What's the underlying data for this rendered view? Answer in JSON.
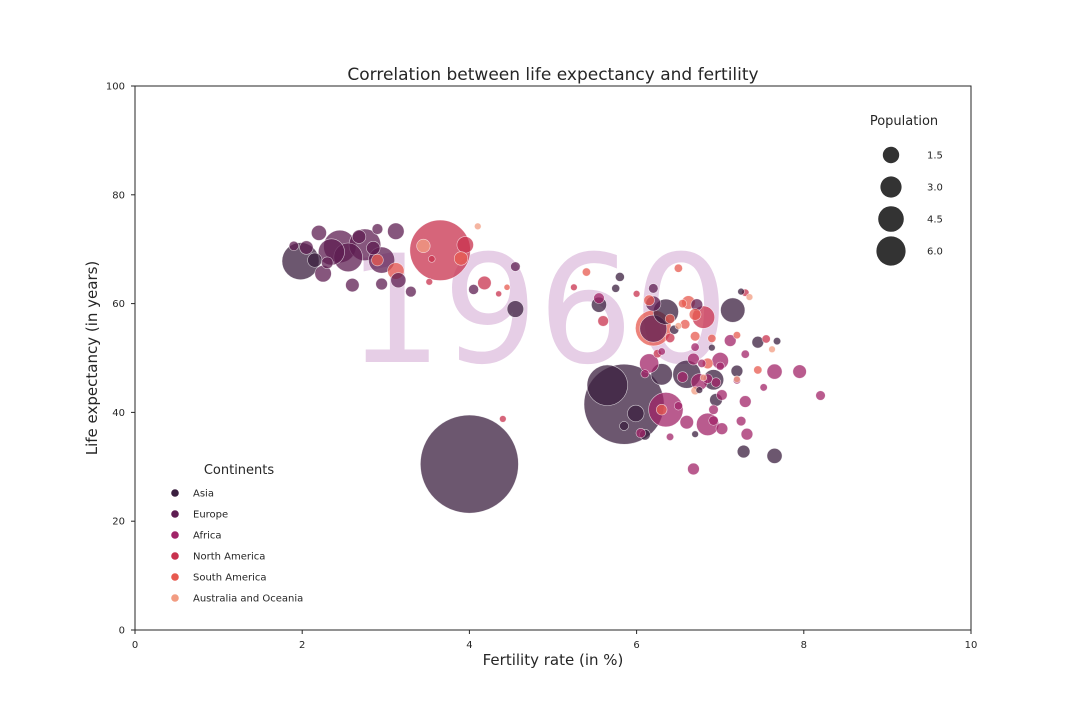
{
  "chart_data": {
    "type": "scatter",
    "title": "Correlation between life expectancy and fertility",
    "xlabel": "Fertility rate (in %)",
    "ylabel": "Life expectancy (in years)",
    "xlim": [
      0,
      10
    ],
    "ylim": [
      0,
      100
    ],
    "xticks": [
      "0",
      "2",
      "4",
      "6",
      "8",
      "10"
    ],
    "yticks": [
      "0",
      "20",
      "40",
      "60",
      "80",
      "100"
    ],
    "year": "1960",
    "grid": false,
    "hue_legend": {
      "title": "Continents",
      "placement": "lower-left",
      "entries": [
        {
          "name": "Asia",
          "color": "#3b1f3f"
        },
        {
          "name": "Europe",
          "color": "#5e1d52"
        },
        {
          "name": "Africa",
          "color": "#a12468"
        },
        {
          "name": "North America",
          "color": "#c8324e"
        },
        {
          "name": "South America",
          "color": "#e7594f"
        },
        {
          "name": "Australia and Oceania",
          "color": "#f29c82"
        }
      ]
    },
    "size_legend": {
      "title": "Population",
      "placement": "top-right",
      "entries": [
        {
          "label": "1.5",
          "value": 1.5
        },
        {
          "label": "3.0",
          "value": 3.0
        },
        {
          "label": "4.5",
          "value": 4.5
        },
        {
          "label": "6.0",
          "value": 6.0
        }
      ]
    },
    "series": [
      {
        "name": "Asia",
        "color": "#3b1f3f",
        "points": [
          [
            4.0,
            30.5,
            2100
          ],
          [
            5.85,
            41.5,
            1400
          ],
          [
            5.65,
            45.0,
            360
          ],
          [
            1.98,
            67.8,
            300
          ],
          [
            6.35,
            58.5,
            140
          ],
          [
            6.6,
            47.0,
            170
          ],
          [
            7.15,
            58.8,
            130
          ],
          [
            6.3,
            47.0,
            100
          ],
          [
            6.92,
            46.0,
            90
          ],
          [
            5.99,
            39.8,
            60
          ],
          [
            7.65,
            32.0,
            50
          ],
          [
            5.55,
            59.8,
            50
          ],
          [
            2.15,
            68.0,
            45
          ],
          [
            7.28,
            32.8,
            35
          ],
          [
            6.95,
            42.3,
            35
          ],
          [
            7.45,
            52.9,
            30
          ],
          [
            4.55,
            59.0,
            60
          ],
          [
            6.1,
            35.9,
            25
          ],
          [
            7.2,
            47.6,
            30
          ],
          [
            6.45,
            55.2,
            18
          ],
          [
            5.8,
            64.9,
            18
          ],
          [
            5.75,
            62.8,
            14
          ],
          [
            6.9,
            51.9,
            10
          ],
          [
            7.25,
            62.2,
            10
          ],
          [
            7.68,
            53.1,
            12
          ],
          [
            6.7,
            36.0,
            10
          ],
          [
            6.75,
            44.1,
            10
          ],
          [
            5.85,
            37.5,
            18
          ]
        ]
      },
      {
        "name": "Europe",
        "color": "#5e1d52",
        "points": [
          [
            2.45,
            70.5,
            230
          ],
          [
            2.75,
            70.8,
            220
          ],
          [
            2.55,
            68.5,
            180
          ],
          [
            2.35,
            69.5,
            150
          ],
          [
            2.95,
            68.0,
            150
          ],
          [
            3.12,
            73.3,
            60
          ],
          [
            2.2,
            73.0,
            50
          ],
          [
            2.68,
            72.3,
            40
          ],
          [
            2.85,
            70.2,
            40
          ],
          [
            3.15,
            64.3,
            50
          ],
          [
            2.6,
            63.4,
            40
          ],
          [
            2.25,
            65.5,
            60
          ],
          [
            2.05,
            70.3,
            40
          ],
          [
            2.9,
            73.7,
            25
          ],
          [
            3.3,
            62.2,
            25
          ],
          [
            2.95,
            63.6,
            30
          ],
          [
            4.05,
            62.6,
            22
          ],
          [
            6.2,
            55.4,
            160
          ],
          [
            6.2,
            60.0,
            50
          ],
          [
            6.72,
            59.8,
            30
          ],
          [
            6.2,
            62.8,
            20
          ],
          [
            2.3,
            67.5,
            30
          ],
          [
            1.9,
            70.6,
            20
          ],
          [
            4.55,
            66.8,
            20
          ]
        ]
      },
      {
        "name": "Africa",
        "color": "#a12468",
        "points": [
          [
            6.35,
            40.5,
            260
          ],
          [
            6.85,
            37.8,
            110
          ],
          [
            6.15,
            49.0,
            80
          ],
          [
            7.0,
            49.5,
            60
          ],
          [
            6.75,
            45.6,
            60
          ],
          [
            7.32,
            36.0,
            30
          ],
          [
            7.95,
            47.5,
            40
          ],
          [
            7.65,
            47.5,
            50
          ],
          [
            7.3,
            42.0,
            30
          ],
          [
            6.6,
            38.2,
            40
          ],
          [
            6.92,
            40.5,
            20
          ],
          [
            7.02,
            37.0,
            30
          ],
          [
            6.68,
            29.6,
            30
          ],
          [
            7.02,
            43.2,
            25
          ],
          [
            8.2,
            43.1,
            20
          ],
          [
            6.95,
            45.5,
            20
          ],
          [
            6.68,
            49.8,
            30
          ],
          [
            6.5,
            41.2,
            15
          ],
          [
            7.12,
            53.2,
            30
          ],
          [
            6.55,
            46.5,
            25
          ],
          [
            6.05,
            36.2,
            20
          ],
          [
            6.78,
            49.0,
            15
          ],
          [
            7.0,
            48.5,
            15
          ],
          [
            6.92,
            38.5,
            20
          ],
          [
            6.4,
            35.5,
            12
          ],
          [
            7.25,
            38.4,
            20
          ],
          [
            6.1,
            47.1,
            15
          ],
          [
            6.7,
            52.0,
            15
          ],
          [
            7.52,
            44.6,
            12
          ],
          [
            6.85,
            46.2,
            20
          ],
          [
            7.2,
            45.9,
            12
          ],
          [
            7.3,
            50.7,
            15
          ],
          [
            6.3,
            51.2,
            12
          ],
          [
            5.55,
            61.0,
            25
          ]
        ]
      },
      {
        "name": "North America",
        "color": "#c8324e",
        "points": [
          [
            3.65,
            69.8,
            800
          ],
          [
            3.95,
            70.8,
            60
          ],
          [
            4.18,
            63.8,
            40
          ],
          [
            6.8,
            57.5,
            110
          ],
          [
            5.6,
            56.8,
            25
          ],
          [
            6.4,
            53.7,
            20
          ],
          [
            7.55,
            53.5,
            15
          ],
          [
            4.4,
            38.8,
            10
          ],
          [
            6.25,
            50.8,
            15
          ],
          [
            7.3,
            62.0,
            12
          ],
          [
            6.0,
            61.8,
            10
          ],
          [
            3.52,
            64.0,
            10
          ],
          [
            5.25,
            63.0,
            10
          ],
          [
            3.55,
            68.2,
            10
          ],
          [
            4.35,
            61.8,
            8
          ]
        ]
      },
      {
        "name": "South America",
        "color": "#e7594f",
        "points": [
          [
            6.2,
            55.5,
            280
          ],
          [
            3.12,
            66.0,
            60
          ],
          [
            3.9,
            68.3,
            40
          ],
          [
            6.62,
            60.2,
            40
          ],
          [
            6.58,
            56.2,
            20
          ],
          [
            6.15,
            60.6,
            25
          ],
          [
            6.7,
            54.0,
            20
          ],
          [
            6.4,
            57.2,
            20
          ],
          [
            6.85,
            49.0,
            25
          ],
          [
            7.45,
            47.8,
            15
          ],
          [
            6.5,
            66.5,
            15
          ],
          [
            5.4,
            65.8,
            15
          ],
          [
            6.3,
            40.5,
            25
          ],
          [
            6.55,
            60.0,
            15
          ],
          [
            6.7,
            58.0,
            30
          ],
          [
            7.2,
            54.2,
            12
          ],
          [
            6.9,
            53.6,
            15
          ],
          [
            2.9,
            68.0,
            30
          ],
          [
            4.45,
            63.0,
            8
          ]
        ]
      },
      {
        "name": "Australia and Oceania",
        "color": "#f29c82",
        "points": [
          [
            3.45,
            70.6,
            40
          ],
          [
            6.7,
            44.0,
            15
          ],
          [
            6.8,
            46.4,
            10
          ],
          [
            7.2,
            46.1,
            10
          ],
          [
            7.62,
            51.6,
            10
          ],
          [
            4.1,
            74.2,
            10
          ],
          [
            7.35,
            61.2,
            10
          ],
          [
            6.5,
            55.9,
            10
          ]
        ]
      }
    ]
  }
}
